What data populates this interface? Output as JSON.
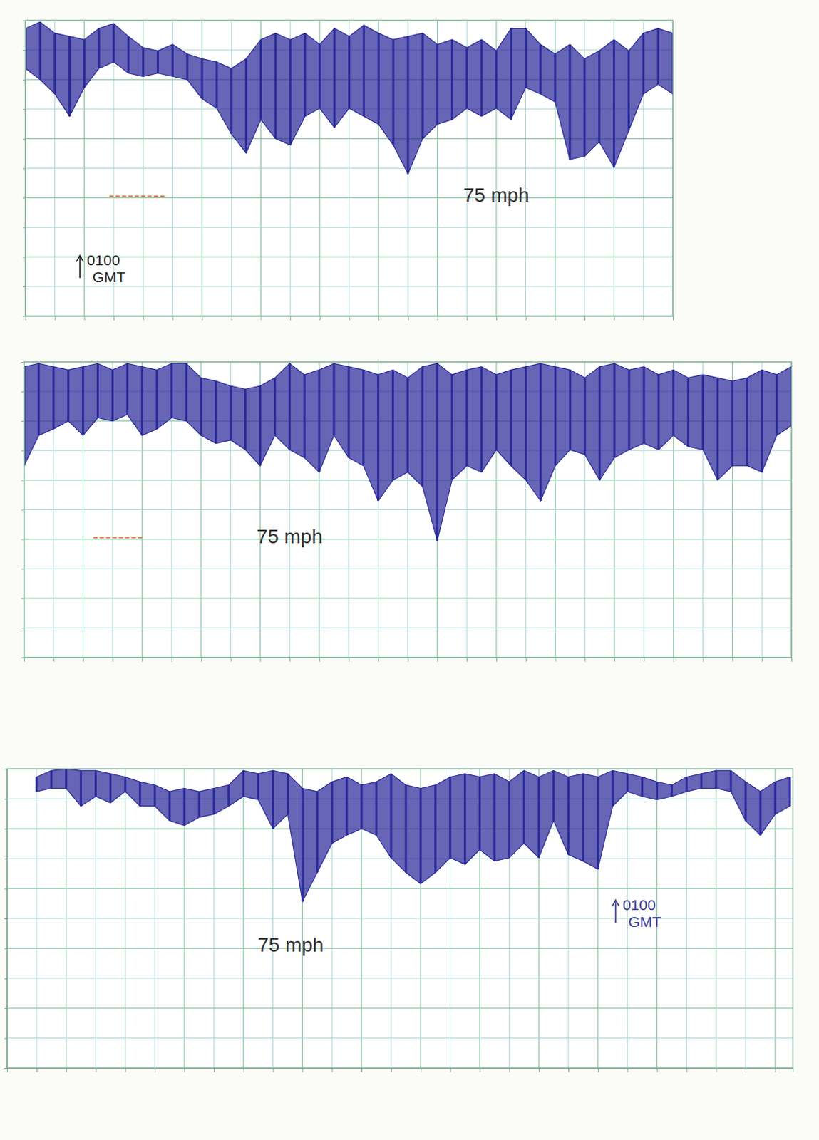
{
  "chart_data": [
    {
      "type": "area",
      "color": "#2b2a9a",
      "grid": true,
      "tick_labels": false,
      "xlim": [
        0,
        22
      ],
      "ylim": [
        0,
        185
      ],
      "xticks": [
        0,
        1,
        2,
        3,
        4,
        5,
        6,
        7,
        8,
        9,
        10,
        11,
        12,
        13,
        14,
        15,
        16,
        17,
        18,
        19,
        20,
        21,
        22
      ],
      "yticks": [
        0,
        18.5,
        37,
        55.5,
        74,
        92.5,
        111,
        129.5,
        148,
        166.5,
        185
      ],
      "x": [
        0,
        0.5,
        1,
        1.5,
        2,
        2.5,
        3,
        3.5,
        4,
        4.5,
        5,
        5.5,
        6,
        6.5,
        7,
        7.5,
        8,
        8.5,
        9,
        9.5,
        10,
        10.5,
        11,
        11.5,
        12,
        12.5,
        13,
        13.5,
        14,
        14.5,
        15,
        15.5,
        16,
        16.5,
        17,
        17.5,
        18,
        18.5,
        19,
        19.5,
        20,
        20.5,
        21,
        21.5,
        22
      ],
      "upper": [
        180,
        184,
        177,
        175,
        173,
        180,
        183,
        175,
        168,
        166,
        170,
        164,
        161,
        159,
        155,
        161,
        173,
        177,
        173,
        177,
        170,
        180,
        175,
        182,
        177,
        173,
        175,
        177,
        170,
        173,
        168,
        173,
        166,
        180,
        180,
        170,
        164,
        170,
        161,
        166,
        173,
        166,
        177,
        180,
        177
      ],
      "lower": [
        155,
        148,
        139,
        125,
        143,
        155,
        159,
        152,
        150,
        152,
        150,
        148,
        136,
        130,
        114,
        102,
        123,
        111,
        107,
        125,
        130,
        118,
        130,
        125,
        120,
        107,
        89,
        111,
        120,
        123,
        130,
        125,
        130,
        123,
        143,
        139,
        134,
        98,
        100,
        109,
        93,
        116,
        139,
        145,
        139
      ],
      "threshold": {
        "y": 75,
        "x": [
          2.85,
          4.8
        ],
        "color": "#e07b39"
      },
      "annotations": [
        {
          "text": "75 mph",
          "x": 16,
          "y": 75,
          "color": "#333333"
        },
        {
          "text": "0100 GMT",
          "x": 1.85,
          "y": 30,
          "color": "#222222",
          "marker": "arrow"
        }
      ]
    },
    {
      "type": "area",
      "color": "#2b2a9a",
      "grid": true,
      "tick_labels": false,
      "xlim": [
        0,
        26
      ],
      "ylim": [
        0,
        185
      ],
      "xticks": [
        0,
        1,
        2,
        3,
        4,
        5,
        6,
        7,
        8,
        9,
        10,
        11,
        12,
        13,
        14,
        15,
        16,
        17,
        18,
        19,
        20,
        21,
        22,
        23,
        24,
        25,
        26
      ],
      "yticks": [
        0,
        18.5,
        37,
        55.5,
        74,
        92.5,
        111,
        129.5,
        148,
        166.5,
        185
      ],
      "x": [
        0,
        0.5,
        1,
        1.5,
        2,
        2.5,
        3,
        3.5,
        4,
        4.5,
        5,
        5.5,
        6,
        6.5,
        7,
        7.5,
        8,
        8.5,
        9,
        9.5,
        10,
        10.5,
        11,
        11.5,
        12,
        12.5,
        13,
        13.5,
        14,
        14.5,
        15,
        15.5,
        16,
        16.5,
        17,
        17.5,
        18,
        18.5,
        19,
        19.5,
        20,
        20.5,
        21,
        21.5,
        22,
        22.5,
        23,
        23.5,
        24,
        24.5,
        25,
        25.5,
        26
      ],
      "upper": [
        182,
        184,
        182,
        180,
        182,
        184,
        180,
        184,
        182,
        180,
        184,
        184,
        175,
        173,
        170,
        168,
        170,
        175,
        184,
        177,
        180,
        184,
        182,
        180,
        177,
        180,
        175,
        182,
        184,
        177,
        180,
        182,
        177,
        180,
        182,
        184,
        182,
        180,
        175,
        182,
        184,
        180,
        182,
        177,
        180,
        175,
        177,
        175,
        173,
        175,
        180,
        177,
        182
      ],
      "lower": [
        120,
        139,
        143,
        148,
        139,
        150,
        148,
        152,
        139,
        143,
        150,
        148,
        139,
        134,
        136,
        130,
        120,
        139,
        130,
        125,
        116,
        139,
        125,
        120,
        98,
        111,
        116,
        107,
        73,
        111,
        120,
        116,
        130,
        120,
        111,
        98,
        120,
        130,
        127,
        111,
        125,
        130,
        134,
        130,
        139,
        132,
        130,
        111,
        120,
        120,
        116,
        139,
        145
      ],
      "threshold": {
        "y": 75,
        "x": [
          2.35,
          4.0
        ],
        "color": "#e07b39"
      },
      "annotations": [
        {
          "text": "75 mph",
          "x": 9,
          "y": 75,
          "color": "#333333"
        }
      ]
    },
    {
      "type": "area",
      "color": "#2b2a9a",
      "grid": true,
      "tick_labels": false,
      "xlim": [
        0,
        26.6
      ],
      "ylim": [
        0,
        185
      ],
      "xticks": [
        0,
        1,
        2,
        3,
        4,
        5,
        6,
        7,
        8,
        9,
        10,
        11,
        12,
        13,
        14,
        15,
        16,
        17,
        18,
        19,
        20,
        21,
        22,
        23,
        24,
        25,
        26
      ],
      "yticks": [
        0,
        18.5,
        37,
        55.5,
        74,
        92.5,
        111,
        129.5,
        148,
        166.5,
        185
      ],
      "x": [
        1,
        1.5,
        2,
        2.5,
        3,
        3.5,
        4,
        4.5,
        5,
        5.5,
        6,
        6.5,
        7,
        7.5,
        8,
        8.5,
        9,
        9.5,
        10,
        10.5,
        11,
        11.5,
        12,
        12.5,
        13,
        13.5,
        14,
        14.5,
        15,
        15.5,
        16,
        16.5,
        17,
        17.5,
        18,
        18.5,
        19,
        19.5,
        20,
        20.5,
        21,
        21.5,
        22,
        22.5,
        23,
        23.5,
        24,
        24.5,
        25,
        25.5,
        26,
        26.5
      ],
      "upper": [
        180,
        184,
        185,
        184,
        184,
        182,
        180,
        177,
        175,
        171,
        173,
        171,
        173,
        175,
        184,
        182,
        184,
        182,
        173,
        171,
        177,
        180,
        175,
        177,
        182,
        175,
        173,
        175,
        180,
        182,
        180,
        182,
        177,
        184,
        180,
        184,
        180,
        182,
        180,
        184,
        182,
        180,
        177,
        175,
        180,
        182,
        184,
        184,
        177,
        171,
        177,
        180
      ],
      "lower": [
        171,
        173,
        173,
        162,
        168,
        164,
        171,
        162,
        162,
        153,
        150,
        155,
        157,
        162,
        168,
        166,
        148,
        157,
        103,
        121,
        139,
        144,
        148,
        144,
        130,
        121,
        114,
        121,
        130,
        126,
        135,
        128,
        130,
        139,
        130,
        153,
        132,
        128,
        123,
        162,
        171,
        168,
        166,
        168,
        171,
        173,
        173,
        171,
        153,
        144,
        157,
        162
      ],
      "annotations": [
        {
          "text": "75 mph",
          "x": 9.6,
          "y": 75,
          "color": "#333333"
        },
        {
          "text": "0100 GMT",
          "x": 20.6,
          "y": 96,
          "color": "#3a3a9a",
          "marker": "arrow"
        }
      ]
    }
  ]
}
